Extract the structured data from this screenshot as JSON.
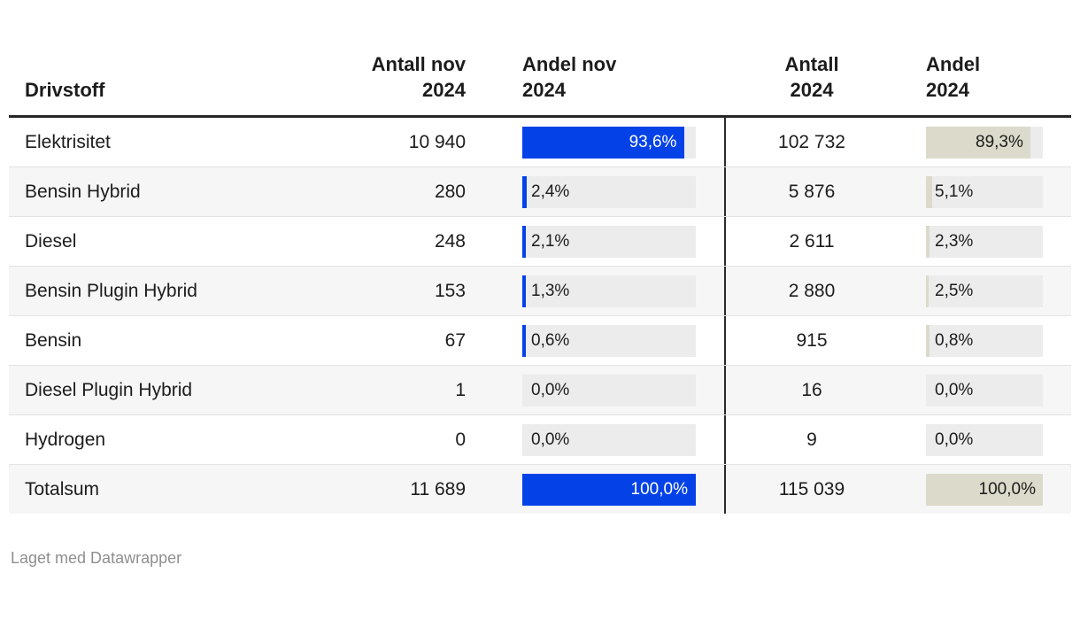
{
  "header": {
    "col_drivstoff": "Drivstoff",
    "col_antall_nov": "Antall nov\n2024",
    "col_andel_nov": "Andel nov\n2024",
    "col_antall_2024": "Antall\n2024",
    "col_andel_2024": "Andel\n2024"
  },
  "rows": [
    {
      "drivstoff": "Elektrisitet",
      "antall_nov": "10 940",
      "andel_nov_label": "93,6%",
      "andel_nov_pct": 93.6,
      "antall_2024": "102 732",
      "andel_2024_label": "89,3%",
      "andel_2024_pct": 89.3
    },
    {
      "drivstoff": "Bensin Hybrid",
      "antall_nov": "280",
      "andel_nov_label": "2,4%",
      "andel_nov_pct": 2.4,
      "antall_2024": "5 876",
      "andel_2024_label": "5,1%",
      "andel_2024_pct": 5.1
    },
    {
      "drivstoff": "Diesel",
      "antall_nov": "248",
      "andel_nov_label": "2,1%",
      "andel_nov_pct": 2.1,
      "antall_2024": "2 611",
      "andel_2024_label": "2,3%",
      "andel_2024_pct": 2.3
    },
    {
      "drivstoff": "Bensin Plugin Hybrid",
      "antall_nov": "153",
      "andel_nov_label": "1,3%",
      "andel_nov_pct": 1.3,
      "antall_2024": "2 880",
      "andel_2024_label": "2,5%",
      "andel_2024_pct": 2.5
    },
    {
      "drivstoff": "Bensin",
      "antall_nov": "67",
      "andel_nov_label": "0,6%",
      "andel_nov_pct": 0.6,
      "antall_2024": "915",
      "andel_2024_label": "0,8%",
      "andel_2024_pct": 0.8
    },
    {
      "drivstoff": "Diesel Plugin Hybrid",
      "antall_nov": "1",
      "andel_nov_label": "0,0%",
      "andel_nov_pct": 0,
      "antall_2024": "16",
      "andel_2024_label": "0,0%",
      "andel_2024_pct": 0
    },
    {
      "drivstoff": "Hydrogen",
      "antall_nov": "0",
      "andel_nov_label": "0,0%",
      "andel_nov_pct": 0,
      "antall_2024": "9",
      "andel_2024_label": "0,0%",
      "andel_2024_pct": 0
    },
    {
      "drivstoff": "Totalsum",
      "antall_nov": "11 689",
      "andel_nov_label": "100,0%",
      "andel_nov_pct": 100,
      "antall_2024": "115 039",
      "andel_2024_label": "100,0%",
      "andel_2024_pct": 100
    }
  ],
  "footer": {
    "credit": "Laget med Datawrapper"
  },
  "colors": {
    "bar_blue": "#0442e8",
    "bar_beige": "#dcdacb",
    "bar_track": "#ececec",
    "row_alt": "#f6f6f6",
    "rule_dark": "#262626",
    "text": "#1c1c1c",
    "footer_text": "#8f8f8f"
  },
  "chart_data": {
    "type": "table",
    "title": "",
    "columns": [
      "Drivstoff",
      "Antall nov 2024",
      "Andel nov 2024 (%)",
      "Antall 2024",
      "Andel 2024 (%)"
    ],
    "rows": [
      [
        "Elektrisitet",
        10940,
        93.6,
        102732,
        89.3
      ],
      [
        "Bensin Hybrid",
        280,
        2.4,
        5876,
        5.1
      ],
      [
        "Diesel",
        248,
        2.1,
        2611,
        2.3
      ],
      [
        "Bensin Plugin Hybrid",
        153,
        1.3,
        2880,
        2.5
      ],
      [
        "Bensin",
        67,
        0.6,
        915,
        0.8
      ],
      [
        "Diesel Plugin Hybrid",
        1,
        0.0,
        16,
        0.0
      ],
      [
        "Hydrogen",
        0,
        0.0,
        9,
        0.0
      ],
      [
        "Totalsum",
        11689,
        100.0,
        115039,
        100.0
      ]
    ],
    "notes": "Bar columns rendered as horizontal bars: 'Andel nov 2024' blue (#0442e8), 'Andel 2024' beige (#dcdacb), bar scale 0–100%"
  }
}
